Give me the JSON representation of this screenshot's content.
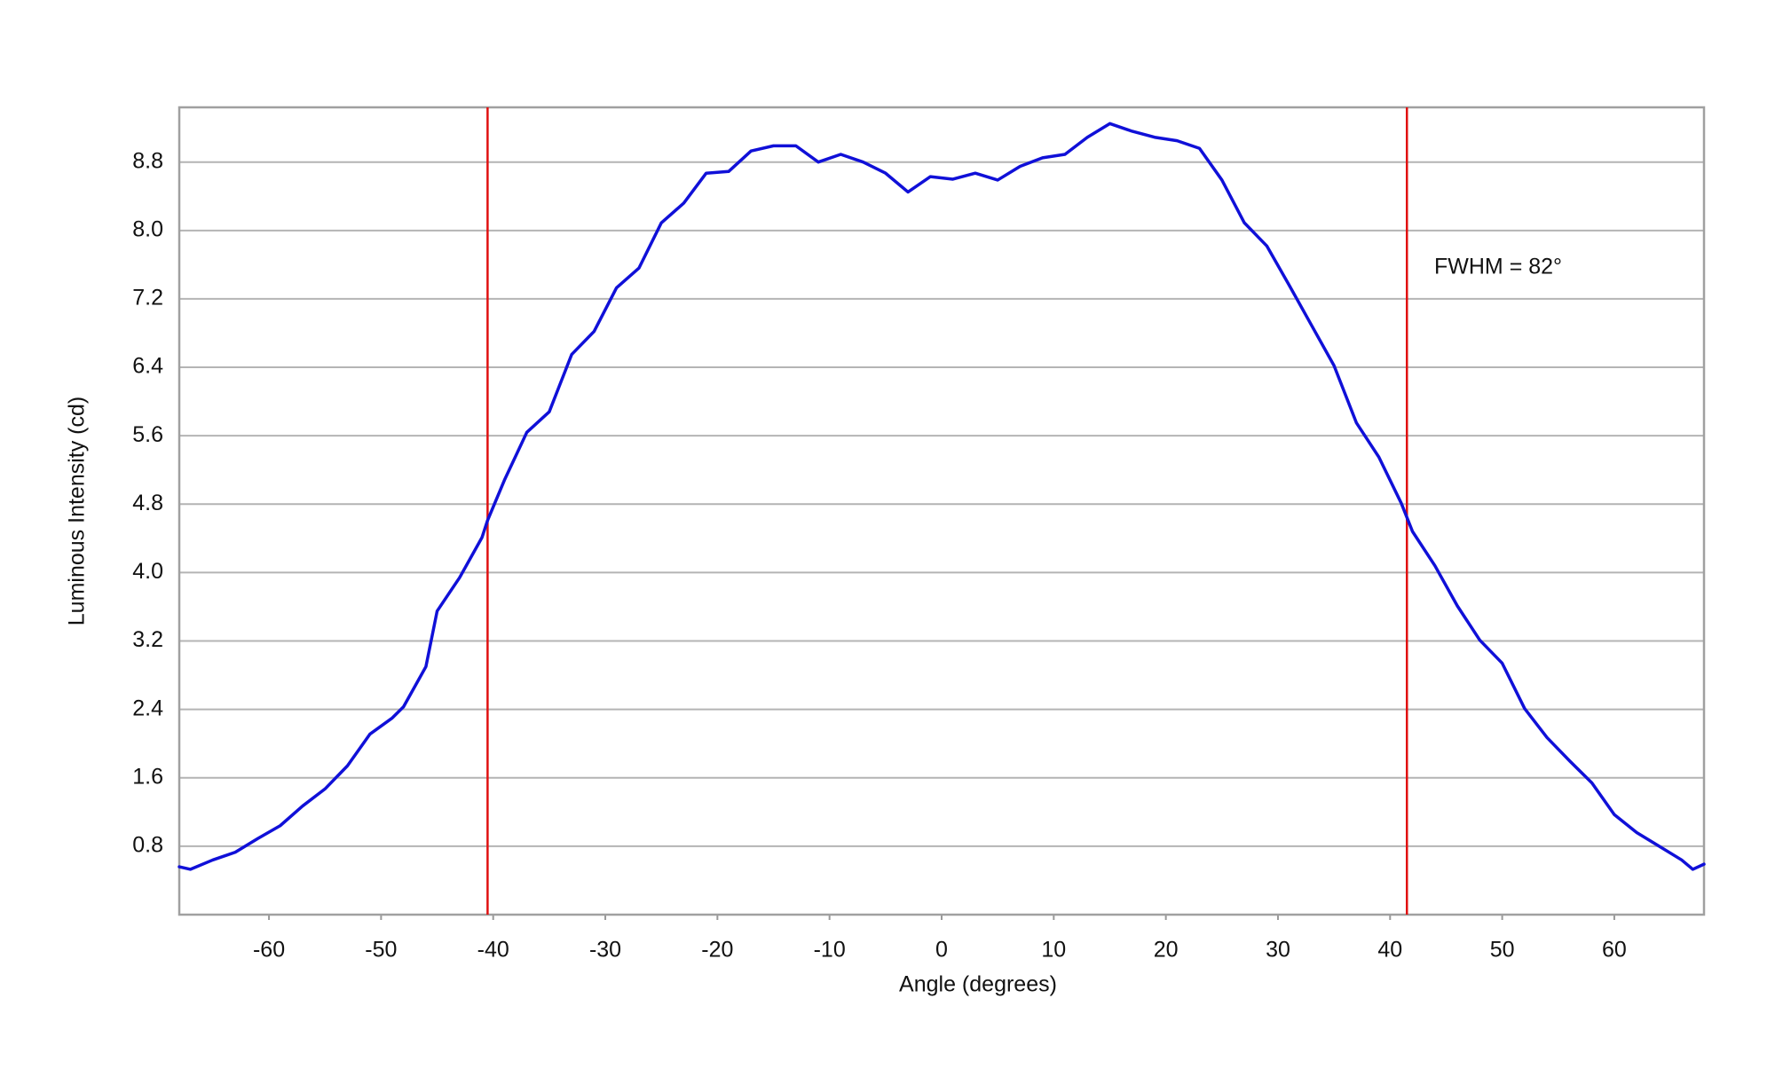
{
  "chart_data": {
    "type": "line",
    "x_label": "Angle (degrees)",
    "y_label": "Luminous Intensity (cd)",
    "annotation": "FWHM = 82°",
    "x": [
      -68,
      -67,
      -65,
      -63,
      -61,
      -59,
      -57,
      -55,
      -53,
      -51,
      -49,
      -48,
      -46,
      -45,
      -43,
      -41,
      -40.5,
      -39,
      -37,
      -35,
      -33,
      -31,
      -29,
      -27,
      -25,
      -23,
      -21,
      -19,
      -17,
      -15,
      -13,
      -11,
      -9,
      -7,
      -5,
      -3,
      -1,
      1,
      3,
      5,
      7,
      9,
      11,
      13,
      15,
      17,
      19,
      21,
      23,
      25,
      27,
      29,
      31,
      33,
      35,
      37,
      39,
      41,
      42,
      44,
      46,
      48,
      50,
      52,
      54,
      56,
      58,
      60,
      62,
      64,
      66,
      67,
      68
    ],
    "series": [
      {
        "color": "#1010d8",
        "values": [
          0.56,
          0.53,
          0.64,
          0.73,
          0.89,
          1.04,
          1.27,
          1.47,
          1.74,
          2.11,
          2.3,
          2.43,
          2.9,
          3.55,
          3.94,
          4.41,
          4.61,
          5.08,
          5.64,
          5.88,
          6.55,
          6.82,
          7.33,
          7.56,
          8.09,
          8.32,
          8.67,
          8.69,
          8.93,
          8.99,
          8.99,
          8.8,
          8.89,
          8.8,
          8.67,
          8.45,
          8.63,
          8.6,
          8.67,
          8.59,
          8.75,
          8.85,
          8.89,
          9.09,
          9.25,
          9.16,
          9.09,
          9.05,
          8.96,
          8.59,
          8.09,
          7.82,
          7.36,
          6.89,
          6.42,
          5.75,
          5.35,
          4.81,
          4.48,
          4.08,
          3.61,
          3.21,
          2.94,
          2.41,
          2.07,
          1.8,
          1.54,
          1.17,
          0.96,
          0.8,
          0.64,
          0.53,
          0.59
        ]
      }
    ],
    "reference_lines": {
      "x": [
        -40.5,
        41.5
      ],
      "color": "#e01010"
    },
    "xlim": [
      -68,
      68
    ],
    "ylim": [
      0,
      9.44
    ],
    "xticks": [
      -60,
      -50,
      -40,
      -30,
      -20,
      -10,
      0,
      10,
      20,
      30,
      40,
      50,
      60
    ],
    "yticks": [
      0.8,
      1.6,
      2.4,
      3.2,
      {
        "value": 4,
        "label": "4.0"
      },
      4.8,
      5.6,
      6.4,
      7.2,
      {
        "value": 8,
        "label": "8.0"
      },
      8.8
    ],
    "grid": true
  }
}
